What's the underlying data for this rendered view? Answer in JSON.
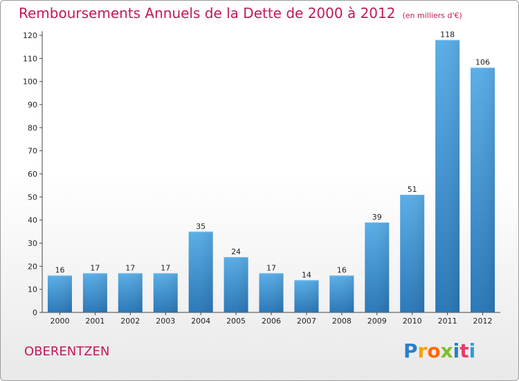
{
  "title": "Remboursements Annuels de la Dette de 2000 à 2012",
  "unit": "(en milliers d'€)",
  "place": "OBERENTZEN",
  "logo": "Proxiti",
  "logo_colors": [
    "#2a7fc4",
    "#f4a300",
    "#ff6a00",
    "#7cbf2a",
    "#2a7fc4",
    "#e73d6c",
    "#2a9fd8"
  ],
  "colors": {
    "bar": "#3d95d6",
    "title": "#c2185b"
  },
  "chart_data": {
    "type": "bar",
    "categories": [
      "2000",
      "2001",
      "2002",
      "2003",
      "2004",
      "2005",
      "2006",
      "2007",
      "2008",
      "2009",
      "2010",
      "2011",
      "2012"
    ],
    "values": [
      16,
      17,
      17,
      17,
      35,
      24,
      17,
      14,
      16,
      39,
      51,
      118,
      106
    ],
    "ylim": [
      0,
      120
    ],
    "yticks": [
      0,
      10,
      20,
      30,
      40,
      50,
      60,
      70,
      80,
      90,
      100,
      110,
      120
    ],
    "grid": false
  }
}
